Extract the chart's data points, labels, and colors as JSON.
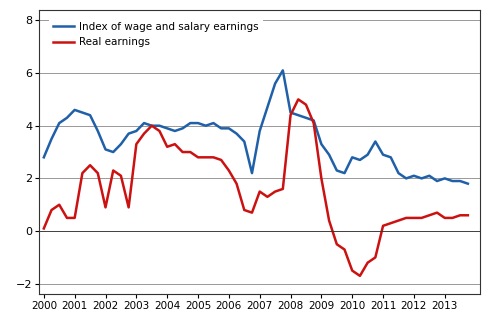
{
  "index_wage": [
    2.8,
    3.5,
    4.1,
    4.3,
    4.6,
    4.5,
    4.4,
    3.8,
    3.1,
    3.0,
    3.3,
    3.7,
    3.8,
    4.1,
    4.0,
    4.0,
    3.9,
    3.8,
    3.9,
    4.1,
    4.1,
    4.0,
    4.1,
    3.9,
    3.9,
    3.7,
    3.4,
    2.2,
    3.8,
    4.7,
    5.6,
    6.1,
    4.5,
    4.4,
    4.3,
    4.2,
    3.3,
    2.9,
    2.3,
    2.2,
    2.8,
    2.7,
    2.9,
    3.4,
    2.9,
    2.8,
    2.2,
    2.0,
    2.1,
    2.0,
    2.1,
    1.9,
    2.0,
    1.9,
    1.9,
    1.8
  ],
  "real_earnings": [
    0.1,
    0.8,
    1.0,
    0.5,
    0.5,
    2.2,
    2.5,
    2.2,
    0.9,
    2.3,
    2.1,
    0.9,
    3.3,
    3.7,
    4.0,
    3.8,
    3.2,
    3.3,
    3.0,
    3.0,
    2.8,
    2.8,
    2.8,
    2.7,
    2.3,
    1.8,
    0.8,
    0.7,
    1.5,
    1.3,
    1.5,
    1.6,
    4.4,
    5.0,
    4.8,
    4.1,
    2.0,
    0.4,
    -0.5,
    -0.7,
    -1.5,
    -1.7,
    -1.2,
    -1.0,
    0.2,
    0.3,
    0.4,
    0.5,
    0.5,
    0.5,
    0.6,
    0.7,
    0.5,
    0.5,
    0.6,
    0.6
  ],
  "start_year": 2000,
  "n_quarters": 56,
  "yticks": [
    -2,
    0,
    2,
    4,
    6,
    8
  ],
  "ylim": [
    -2.4,
    8.4
  ],
  "xlim": [
    1999.85,
    2014.15
  ],
  "xtick_years": [
    2000,
    2001,
    2002,
    2003,
    2004,
    2005,
    2006,
    2007,
    2008,
    2009,
    2010,
    2011,
    2012,
    2013
  ],
  "color_wage": "#2060a8",
  "color_real": "#cc1111",
  "legend_wage": "Index of wage and salary earnings",
  "legend_real": "Real earnings",
  "linewidth": 1.8,
  "background_color": "#ffffff",
  "grid_color": "#888888"
}
